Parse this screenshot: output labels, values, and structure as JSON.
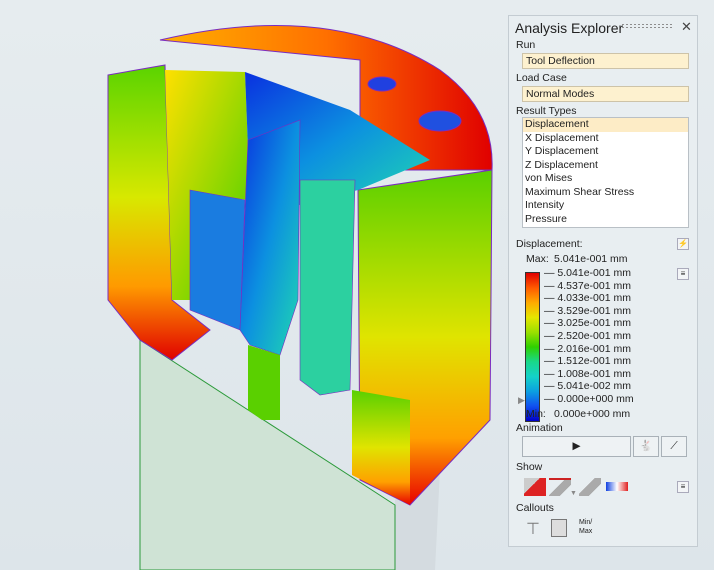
{
  "panel": {
    "title": "Analysis Explorer",
    "run_label": "Run",
    "run_value": "Tool Deflection",
    "load_case_label": "Load Case",
    "load_case_value": "Normal Modes",
    "result_types_label": "Result Types",
    "result_types": [
      "Displacement",
      "X Displacement",
      "Y Displacement",
      "Z Displacement",
      "von Mises",
      "Maximum Shear Stress",
      "Intensity",
      "Pressure"
    ],
    "selected_result": "Displacement"
  },
  "legend": {
    "title": "Displacement:",
    "max_label": "Max:",
    "max_value": "5.041e-001 mm",
    "min_label": "Min:",
    "min_value": "0.000e+000 mm",
    "ticks": [
      "5.041e-001 mm",
      "4.537e-001 mm",
      "4.033e-001 mm",
      "3.529e-001 mm",
      "3.025e-001 mm",
      "2.520e-001 mm",
      "2.016e-001 mm",
      "1.512e-001 mm",
      "1.008e-001 mm",
      "5.041e-002 mm",
      "0.000e+000 mm"
    ],
    "colors": [
      "#e00000",
      "#ff5a00",
      "#ffaa00",
      "#e6e600",
      "#9be000",
      "#2fd000",
      "#19d88a",
      "#14d2c8",
      "#0ca0e0",
      "#1050f0",
      "#0000c8"
    ]
  },
  "animation": {
    "label": "Animation"
  },
  "show": {
    "label": "Show"
  },
  "callouts": {
    "label": "Callouts",
    "minmax": "Min/\nMax"
  }
}
